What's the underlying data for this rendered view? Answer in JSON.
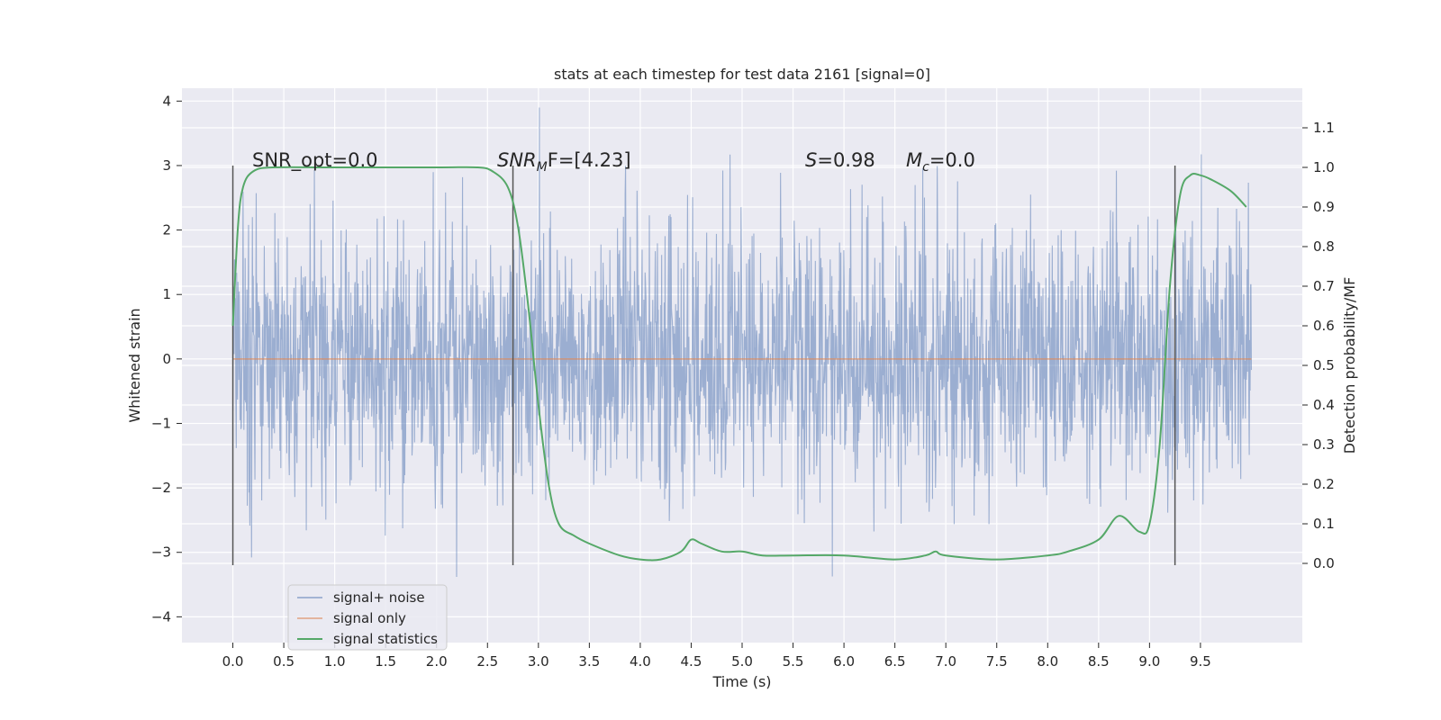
{
  "chart_data": {
    "type": "line",
    "title": "stats at each timestep for test data 2161 [signal=0]",
    "xlabel": "Time (s)",
    "ylabel": "Whitened strain",
    "y2label": "Detection probability/MF",
    "xlim": [
      -0.5,
      10.5
    ],
    "ylim": [
      -4.4,
      4.2
    ],
    "y2lim": [
      -0.2,
      1.2
    ],
    "grid": true,
    "legend_position": "lower-left",
    "x_ticks": [
      "0.0",
      "0.5",
      "1.0",
      "1.5",
      "2.0",
      "2.5",
      "3.0",
      "3.5",
      "4.0",
      "4.5",
      "5.0",
      "5.5",
      "6.0",
      "6.5",
      "7.0",
      "7.5",
      "8.0",
      "8.5",
      "9.0",
      "9.5"
    ],
    "y_ticks": [
      "4",
      "3",
      "2",
      "1",
      "0",
      "−1",
      "−2",
      "−3",
      "−4"
    ],
    "y2_ticks": [
      "1.1",
      "1.0",
      "0.9",
      "0.8",
      "0.7",
      "0.6",
      "0.5",
      "0.4",
      "0.3",
      "0.2",
      "0.1",
      "0.0"
    ],
    "annotations": [
      {
        "label": "SNR_opt=0.0"
      },
      {
        "prefix": "SNR",
        "sub": "M",
        "suffix": "F=[4.23]"
      },
      {
        "prefix": "S",
        "suffix": "=0.98"
      },
      {
        "prefix": "M",
        "sub": "c",
        "suffix": "=0.0"
      }
    ],
    "vertical_lines_x": [
      0.0,
      2.75,
      9.25
    ],
    "vertical_lines_yrange": [
      -3.2,
      3.0
    ],
    "noise_x_range": [
      0.0,
      10.0
    ],
    "noise_envelope_std": 1.0,
    "series": [
      {
        "name": "signal+ noise",
        "color": "#4c72b0",
        "axis": "left",
        "description_values": "noise band roughly between -4 and 4"
      },
      {
        "name": "signal only",
        "color": "#dd8452",
        "axis": "left",
        "x": [
          0.0,
          10.0
        ],
        "values": [
          0.0,
          0.0
        ]
      },
      {
        "name": "signal statistics",
        "color": "#55a868",
        "axis": "right",
        "x": [
          0.0,
          0.05,
          0.1,
          0.2,
          0.4,
          1.0,
          2.0,
          2.4,
          2.55,
          2.7,
          2.8,
          2.9,
          3.0,
          3.1,
          3.2,
          3.35,
          3.5,
          3.8,
          4.0,
          4.2,
          4.4,
          4.5,
          4.6,
          4.8,
          5.0,
          5.2,
          5.5,
          6.0,
          6.5,
          6.8,
          6.9,
          7.0,
          7.5,
          8.0,
          8.2,
          8.5,
          8.7,
          8.9,
          9.0,
          9.1,
          9.2,
          9.3,
          9.4,
          9.5,
          9.6,
          9.8,
          9.95
        ],
        "values": [
          0.6,
          0.85,
          0.95,
          0.99,
          1.0,
          1.0,
          1.0,
          1.0,
          0.99,
          0.95,
          0.85,
          0.65,
          0.4,
          0.2,
          0.1,
          0.07,
          0.05,
          0.02,
          0.01,
          0.01,
          0.03,
          0.06,
          0.05,
          0.03,
          0.03,
          0.02,
          0.02,
          0.02,
          0.01,
          0.02,
          0.03,
          0.02,
          0.01,
          0.02,
          0.03,
          0.06,
          0.12,
          0.08,
          0.1,
          0.3,
          0.7,
          0.93,
          0.98,
          0.98,
          0.97,
          0.94,
          0.9
        ]
      }
    ]
  }
}
